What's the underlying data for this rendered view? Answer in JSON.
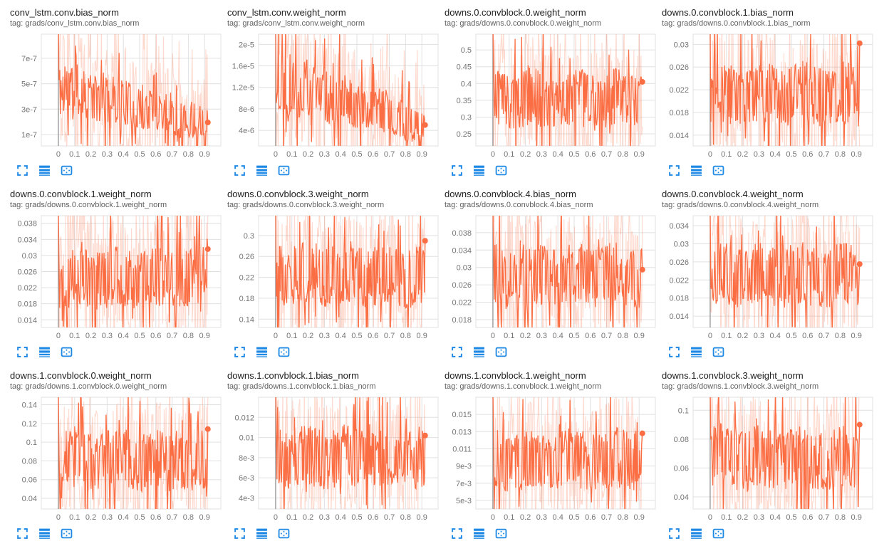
{
  "colors": {
    "series_line": "#fb6d42",
    "band_opacity": 0.26,
    "icon_blue": "#1e88e5",
    "grid_line": "#e0e0e0",
    "zero_line": "#8a8a8a",
    "tick_text": "#757575",
    "title_text": "#212121",
    "tag_text": "#616161"
  },
  "icons": [
    "expand-icon",
    "log-scale-icon",
    "fit-domain-icon"
  ],
  "x_axis": {
    "tick_labels": [
      "0",
      "0.1",
      "0.2",
      "0.3",
      "0.4",
      "0.5",
      "0.6",
      "0.7",
      "0.8",
      "0.9"
    ],
    "tick_values": [
      0,
      0.1,
      0.2,
      0.3,
      0.4,
      0.5,
      0.6,
      0.7,
      0.8,
      0.9
    ],
    "domain": [
      -0.105,
      1.0
    ],
    "data_end": 0.92
  },
  "chart_data": [
    {
      "type": "line",
      "title": "conv_lstm.conv.bias_norm",
      "tag": "tag: grads/conv_lstm.conv.bias_norm",
      "y_ticks": [
        {
          "label": "7e-7",
          "value": 7e-07
        },
        {
          "label": "5e-7",
          "value": 5e-07
        },
        {
          "label": "3e-7",
          "value": 3e-07
        },
        {
          "label": "1e-7",
          "value": 1e-07
        }
      ],
      "y_domain": [
        1e-08,
        8.9e-07
      ],
      "end_value": 1.95e-07,
      "trend": [
        0.52,
        0.2
      ],
      "amp": 0.24,
      "raw_amp": 0.55,
      "seed": 11
    },
    {
      "type": "line",
      "title": "conv_lstm.conv.weight_norm",
      "tag": "tag: grads/conv_lstm.conv.weight_norm",
      "y_ticks": [
        {
          "label": "2e-5",
          "value": 2e-05
        },
        {
          "label": "1.6e-5",
          "value": 1.6e-05
        },
        {
          "label": "1.2e-5",
          "value": 1.2e-05
        },
        {
          "label": "8e-6",
          "value": 8e-06
        },
        {
          "label": "4e-6",
          "value": 4e-06
        }
      ],
      "y_domain": [
        1.1e-06,
        2.19e-05
      ],
      "end_value": 5e-06,
      "trend": [
        0.58,
        0.18
      ],
      "amp": 0.26,
      "raw_amp": 0.55,
      "seed": 22
    },
    {
      "type": "line",
      "title": "downs.0.convblock.0.weight_norm",
      "tag": "tag: grads/downs.0.convblock.0.weight_norm",
      "y_ticks": [
        {
          "label": "0.5",
          "value": 0.5
        },
        {
          "label": "0.45",
          "value": 0.45
        },
        {
          "label": "0.4",
          "value": 0.4
        },
        {
          "label": "0.35",
          "value": 0.35
        },
        {
          "label": "0.3",
          "value": 0.3
        },
        {
          "label": "0.25",
          "value": 0.25
        }
      ],
      "y_domain": [
        0.214,
        0.547
      ],
      "end_value": 0.405,
      "trend": [
        0.42,
        0.4
      ],
      "amp": 0.3,
      "raw_amp": 0.56,
      "seed": 33
    },
    {
      "type": "line",
      "title": "downs.0.convblock.1.bias_norm",
      "tag": "tag: grads/downs.0.convblock.1.bias_norm",
      "y_ticks": [
        {
          "label": "0.03",
          "value": 0.03
        },
        {
          "label": "0.026",
          "value": 0.026
        },
        {
          "label": "0.022",
          "value": 0.022
        },
        {
          "label": "0.018",
          "value": 0.018
        },
        {
          "label": "0.014",
          "value": 0.014
        }
      ],
      "y_domain": [
        0.0121,
        0.0318
      ],
      "end_value": 0.0302,
      "trend": [
        0.46,
        0.46
      ],
      "amp": 0.3,
      "raw_amp": 0.56,
      "seed": 44
    },
    {
      "type": "line",
      "title": "downs.0.convblock.1.weight_norm",
      "tag": "tag: grads/downs.0.convblock.1.weight_norm",
      "y_ticks": [
        {
          "label": "0.038",
          "value": 0.038
        },
        {
          "label": "0.034",
          "value": 0.034
        },
        {
          "label": "0.03",
          "value": 0.03
        },
        {
          "label": "0.026",
          "value": 0.026
        },
        {
          "label": "0.022",
          "value": 0.022
        },
        {
          "label": "0.018",
          "value": 0.018
        },
        {
          "label": "0.014",
          "value": 0.014
        }
      ],
      "y_domain": [
        0.0121,
        0.0399
      ],
      "end_value": 0.0316,
      "trend": [
        0.44,
        0.44
      ],
      "amp": 0.3,
      "raw_amp": 0.56,
      "seed": 55
    },
    {
      "type": "line",
      "title": "downs.0.convblock.3.weight_norm",
      "tag": "tag: grads/downs.0.convblock.3.weight_norm",
      "y_ticks": [
        {
          "label": "0.3",
          "value": 0.3
        },
        {
          "label": "0.26",
          "value": 0.26
        },
        {
          "label": "0.22",
          "value": 0.22
        },
        {
          "label": "0.18",
          "value": 0.18
        },
        {
          "label": "0.14",
          "value": 0.14
        }
      ],
      "y_domain": [
        0.124,
        0.338
      ],
      "end_value": 0.29,
      "trend": [
        0.48,
        0.46
      ],
      "amp": 0.3,
      "raw_amp": 0.56,
      "seed": 66
    },
    {
      "type": "line",
      "title": "downs.0.convblock.4.bias_norm",
      "tag": "tag: grads/downs.0.convblock.4.bias_norm",
      "y_ticks": [
        {
          "label": "0.038",
          "value": 0.038
        },
        {
          "label": "0.034",
          "value": 0.034
        },
        {
          "label": "0.03",
          "value": 0.03
        },
        {
          "label": "0.026",
          "value": 0.026
        },
        {
          "label": "0.022",
          "value": 0.022
        },
        {
          "label": "0.018",
          "value": 0.018
        }
      ],
      "y_domain": [
        0.0162,
        0.0419
      ],
      "end_value": 0.0295,
      "trend": [
        0.47,
        0.46
      ],
      "amp": 0.3,
      "raw_amp": 0.56,
      "seed": 77
    },
    {
      "type": "line",
      "title": "downs.0.convblock.4.weight_norm",
      "tag": "tag: grads/downs.0.convblock.4.weight_norm",
      "y_ticks": [
        {
          "label": "0.034",
          "value": 0.034
        },
        {
          "label": "0.03",
          "value": 0.03
        },
        {
          "label": "0.026",
          "value": 0.026
        },
        {
          "label": "0.022",
          "value": 0.022
        },
        {
          "label": "0.018",
          "value": 0.018
        },
        {
          "label": "0.014",
          "value": 0.014
        }
      ],
      "y_domain": [
        0.0115,
        0.0362
      ],
      "end_value": 0.0255,
      "trend": [
        0.47,
        0.46
      ],
      "amp": 0.3,
      "raw_amp": 0.56,
      "seed": 88
    },
    {
      "type": "line",
      "title": "downs.1.convblock.0.weight_norm",
      "tag": "tag: grads/downs.1.convblock.0.weight_norm",
      "y_ticks": [
        {
          "label": "0.14",
          "value": 0.14
        },
        {
          "label": "0.12",
          "value": 0.12
        },
        {
          "label": "0.1",
          "value": 0.1
        },
        {
          "label": "0.08",
          "value": 0.08
        },
        {
          "label": "0.06",
          "value": 0.06
        },
        {
          "label": "0.04",
          "value": 0.04
        }
      ],
      "y_domain": [
        0.0286,
        0.148
      ],
      "end_value": 0.114,
      "trend": [
        0.45,
        0.42
      ],
      "amp": 0.3,
      "raw_amp": 0.56,
      "seed": 99
    },
    {
      "type": "line",
      "title": "downs.1.convblock.1.bias_norm",
      "tag": "tag: grads/downs.1.convblock.1.bias_norm",
      "y_ticks": [
        {
          "label": "0.012",
          "value": 0.012
        },
        {
          "label": "0.01",
          "value": 0.01
        },
        {
          "label": "8e-3",
          "value": 0.008
        },
        {
          "label": "6e-3",
          "value": 0.006
        },
        {
          "label": "4e-3",
          "value": 0.004
        }
      ],
      "y_domain": [
        0.0029,
        0.014
      ],
      "end_value": 0.0102,
      "trend": [
        0.46,
        0.46
      ],
      "amp": 0.3,
      "raw_amp": 0.56,
      "seed": 110
    },
    {
      "type": "line",
      "title": "downs.1.convblock.1.weight_norm",
      "tag": "tag: grads/downs.1.convblock.1.weight_norm",
      "y_ticks": [
        {
          "label": "0.015",
          "value": 0.015
        },
        {
          "label": "0.013",
          "value": 0.013
        },
        {
          "label": "0.011",
          "value": 0.011
        },
        {
          "label": "9e-3",
          "value": 0.009
        },
        {
          "label": "7e-3",
          "value": 0.007
        },
        {
          "label": "5e-3",
          "value": 0.005
        }
      ],
      "y_domain": [
        0.004,
        0.017
      ],
      "end_value": 0.0128,
      "trend": [
        0.43,
        0.44
      ],
      "amp": 0.3,
      "raw_amp": 0.56,
      "seed": 121
    },
    {
      "type": "line",
      "title": "downs.1.convblock.3.weight_norm",
      "tag": "tag: grads/downs.1.convblock.3.weight_norm",
      "y_ticks": [
        {
          "label": "0.1",
          "value": 0.1
        },
        {
          "label": "0.08",
          "value": 0.08
        },
        {
          "label": "0.06",
          "value": 0.06
        },
        {
          "label": "0.04",
          "value": 0.04
        }
      ],
      "y_domain": [
        0.0316,
        0.109
      ],
      "end_value": 0.09,
      "trend": [
        0.46,
        0.44
      ],
      "amp": 0.3,
      "raw_amp": 0.56,
      "seed": 132
    }
  ]
}
